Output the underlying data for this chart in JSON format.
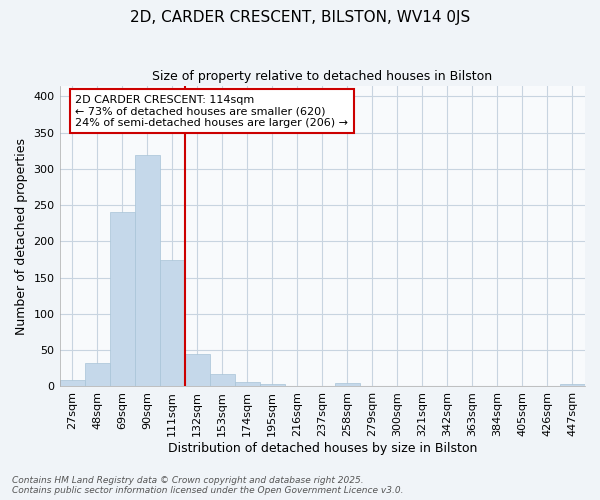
{
  "title": "2D, CARDER CRESCENT, BILSTON, WV14 0JS",
  "subtitle": "Size of property relative to detached houses in Bilston",
  "xlabel": "Distribution of detached houses by size in Bilston",
  "ylabel": "Number of detached properties",
  "footer_line1": "Contains HM Land Registry data © Crown copyright and database right 2025.",
  "footer_line2": "Contains public sector information licensed under the Open Government Licence v3.0.",
  "bin_labels": [
    "27sqm",
    "48sqm",
    "69sqm",
    "90sqm",
    "111sqm",
    "132sqm",
    "153sqm",
    "174sqm",
    "195sqm",
    "216sqm",
    "237sqm",
    "258sqm",
    "279sqm",
    "300sqm",
    "321sqm",
    "342sqm",
    "363sqm",
    "384sqm",
    "405sqm",
    "426sqm",
    "447sqm"
  ],
  "bar_heights": [
    9,
    33,
    240,
    319,
    175,
    45,
    17,
    6,
    3,
    0,
    0,
    5,
    0,
    1,
    0,
    0,
    0,
    0,
    0,
    0,
    3
  ],
  "bar_color": "#c5d8ea",
  "bar_edgecolor": "#a8c4d8",
  "vline_color": "#cc0000",
  "vline_x": 4.5,
  "annotation_text": "2D CARDER CRESCENT: 114sqm\n← 73% of detached houses are smaller (620)\n24% of semi-detached houses are larger (206) →",
  "annotation_box_color": "white",
  "annotation_box_edgecolor": "#cc0000",
  "ylim": [
    0,
    415
  ],
  "yticks": [
    0,
    50,
    100,
    150,
    200,
    250,
    300,
    350,
    400
  ],
  "grid_color": "#c8d4e0",
  "background_color": "#f0f4f8",
  "plot_background": "#f8fafc",
  "title_fontsize": 11,
  "subtitle_fontsize": 9,
  "tick_fontsize": 8,
  "ylabel_fontsize": 9,
  "xlabel_fontsize": 9,
  "footer_fontsize": 6.5
}
